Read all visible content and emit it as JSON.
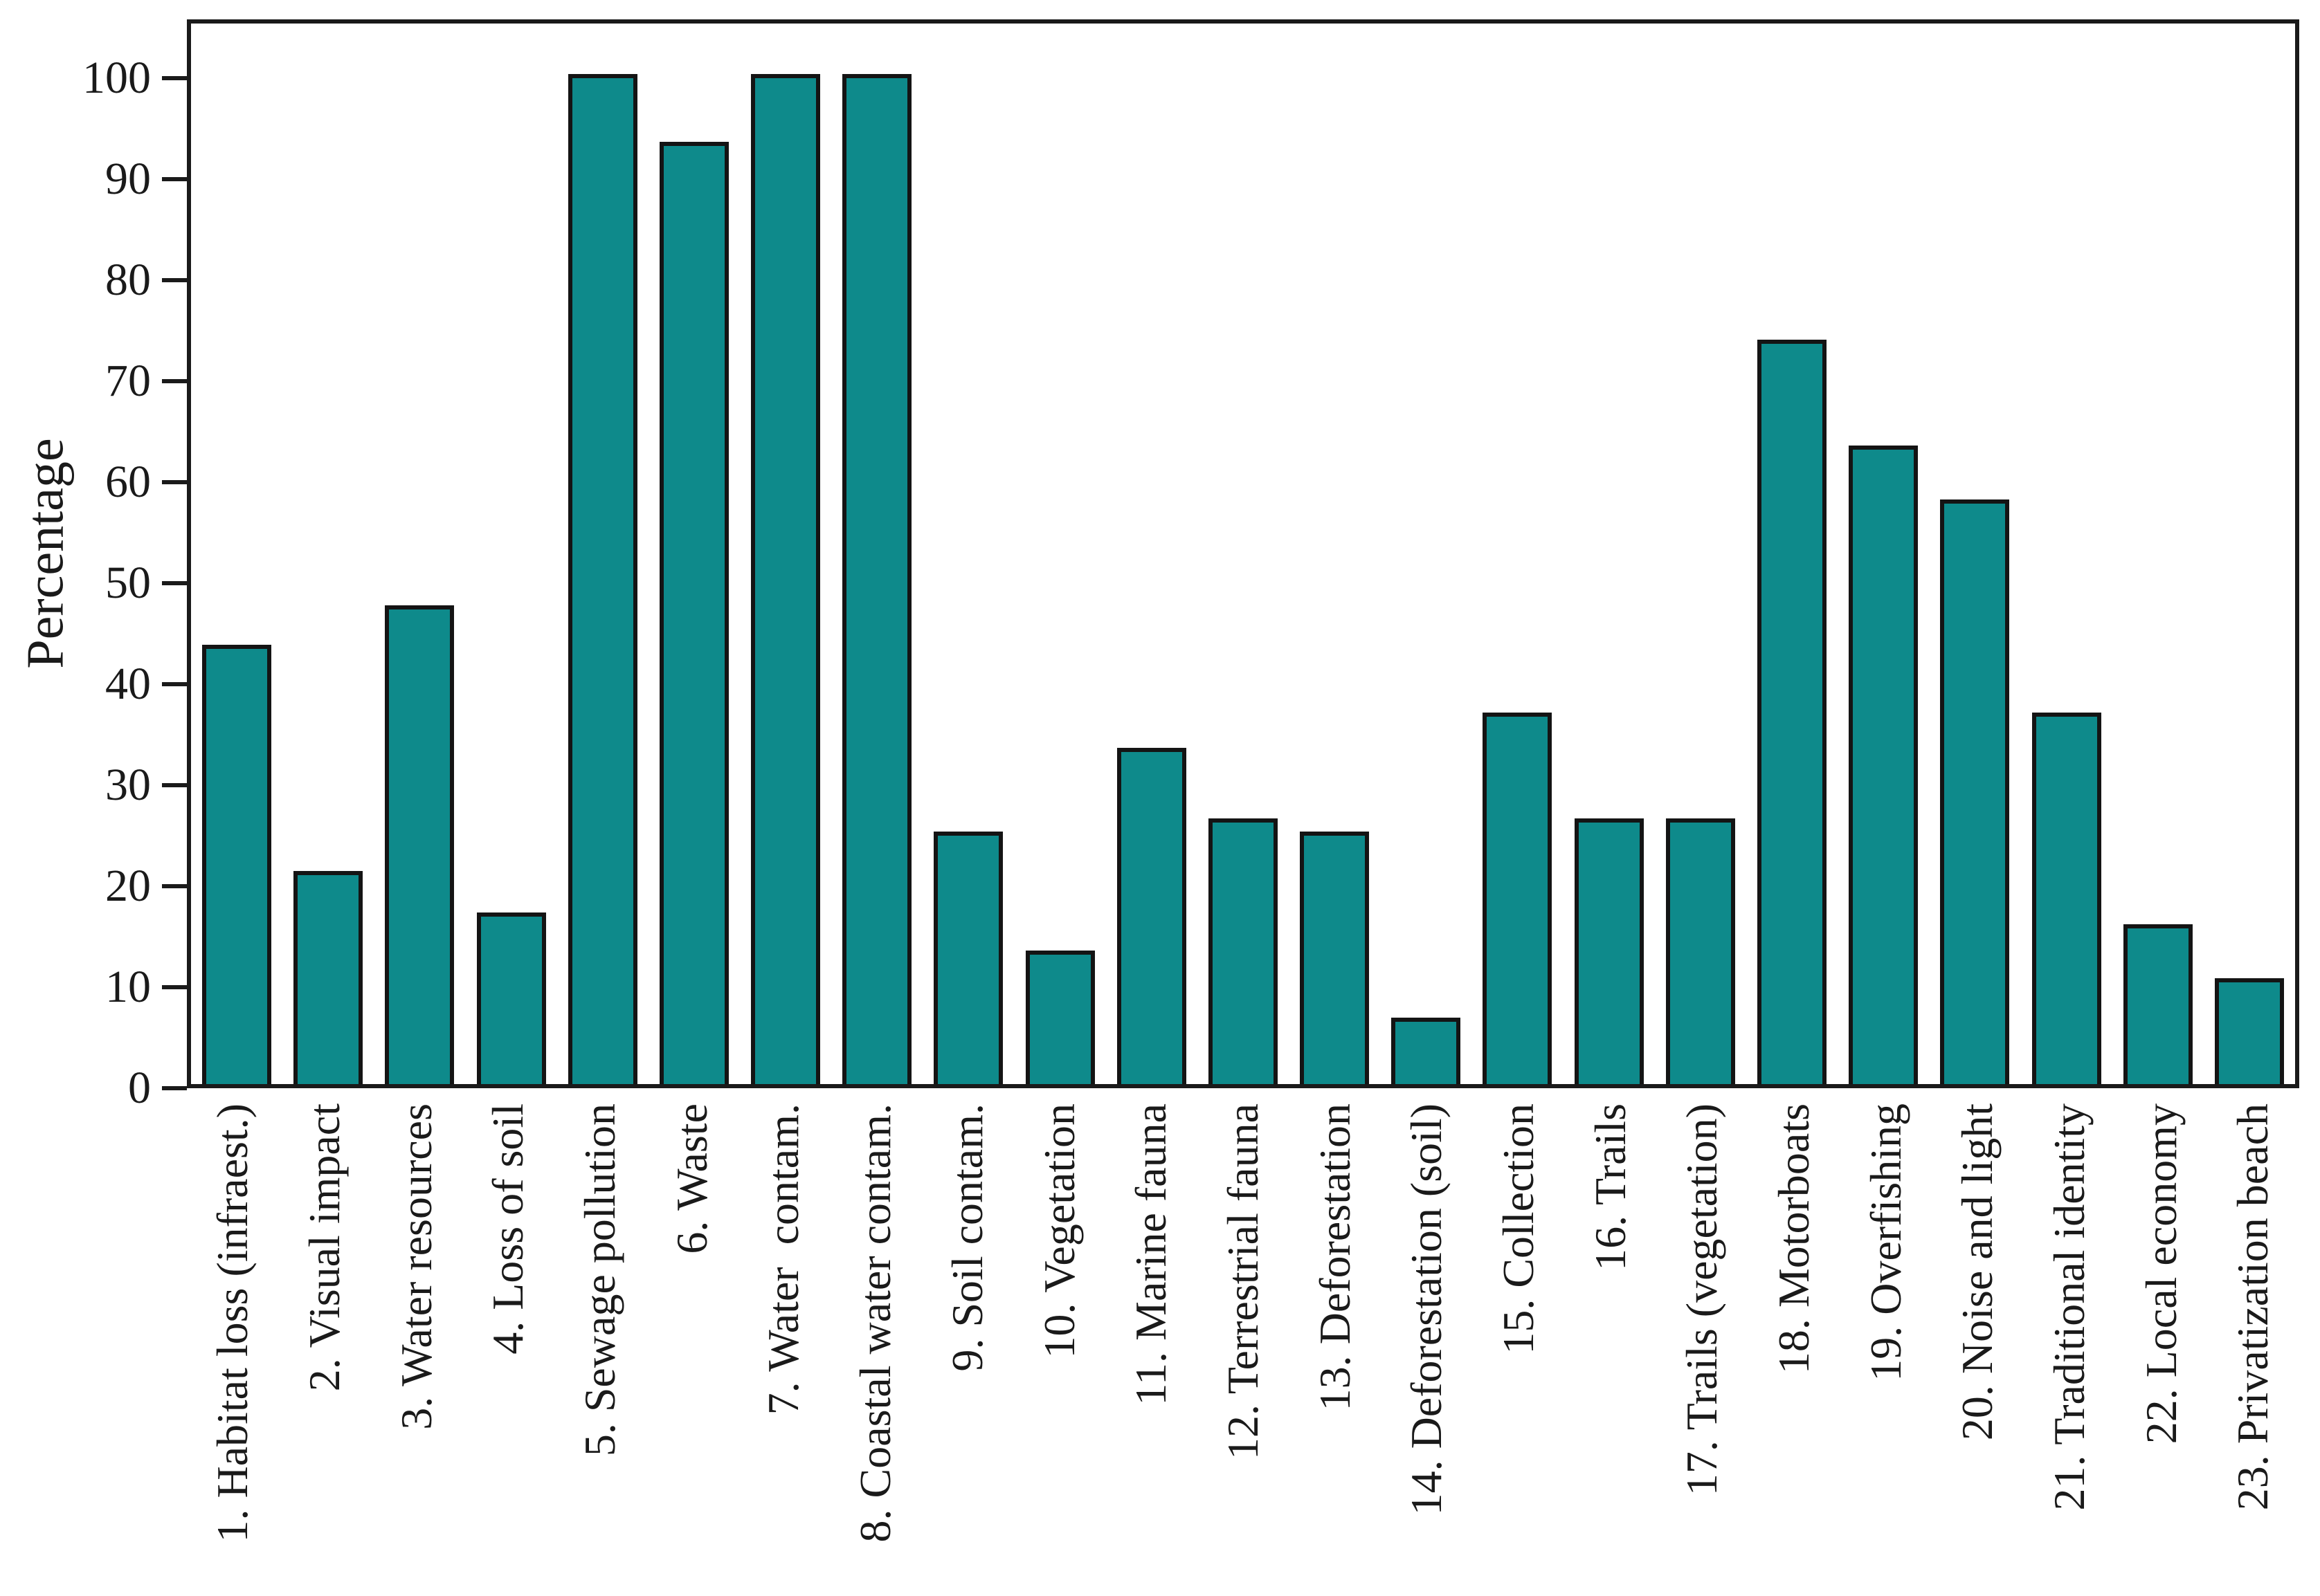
{
  "chart_data": {
    "type": "bar",
    "title": "",
    "xlabel": "",
    "ylabel": "Percentage",
    "ylim": [
      0,
      100
    ],
    "yticks": [
      0,
      10,
      20,
      30,
      40,
      50,
      60,
      70,
      80,
      90,
      100
    ],
    "grid": false,
    "legend": null,
    "bar_fill_color": "#0e8a8b",
    "bar_border_color": "#141414",
    "categories": [
      "1. Habitat loss (infraest.)",
      "2. Visual impact",
      "3. Water resources",
      "4. Loss of soil",
      "5. Sewage pollution",
      "6. Waste",
      "7. Water  contam.",
      "8. Coastal water contam.",
      "9. Soil contam.",
      "10. Vegetation",
      "11. Marine fauna",
      "12. Terrestrial fauna",
      "13. Deforestation",
      "14. Deforestation (soil)",
      "15. Collection",
      "16. Trails",
      "17. Trails (vegetation)",
      "18. Motorboats",
      "19. Overfishing",
      "20. Noise and light",
      "21. Traditional identity",
      "22. Local economy",
      "23. Privatization beach"
    ],
    "values": [
      43.5,
      21.1,
      47.4,
      17.0,
      100.0,
      93.3,
      100.0,
      100.0,
      25.0,
      13.2,
      33.3,
      26.3,
      25.0,
      6.6,
      36.8,
      26.3,
      26.3,
      73.7,
      63.2,
      57.9,
      36.8,
      15.8,
      10.5
    ]
  }
}
